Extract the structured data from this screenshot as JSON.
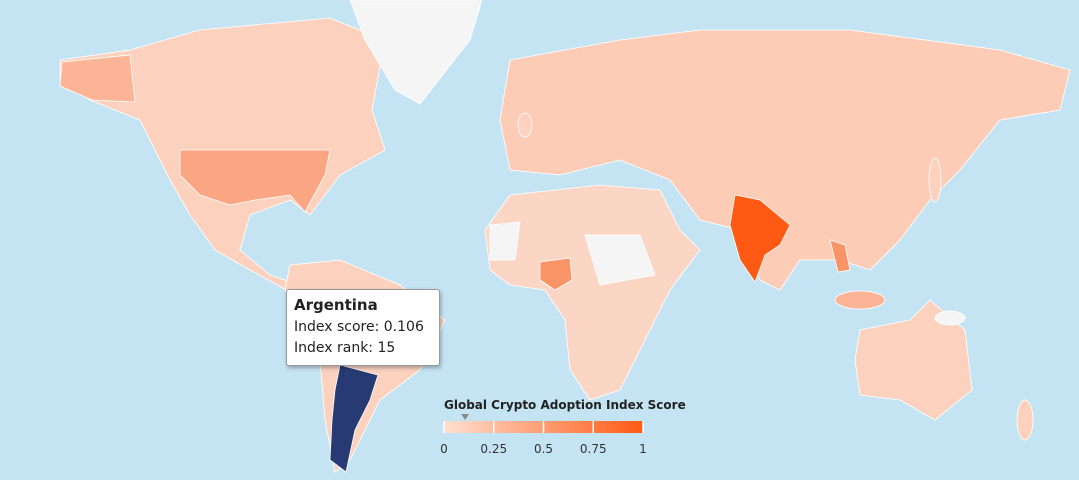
{
  "tooltip": {
    "title": "Argentina",
    "lines": [
      "Index score: 0.106",
      "Index rank: 15"
    ]
  },
  "legend": {
    "title": "Global Crypto Adoption Index Score",
    "range": [
      0,
      1
    ],
    "ticks": [
      0,
      0.25,
      0.5,
      0.75,
      1
    ],
    "colors": [
      "#fde0d2",
      "#ff5a14"
    ],
    "marker": 0.106
  }
}
